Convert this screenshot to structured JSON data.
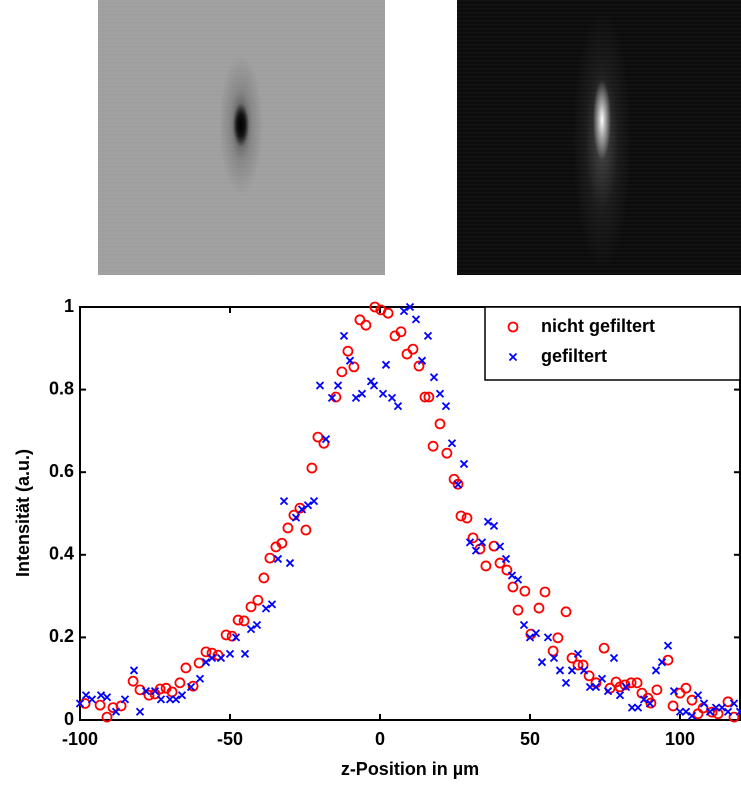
{
  "chart_data": {
    "type": "scatter",
    "xlabel": "z-Position in µm",
    "ylabel": "Intensität (a.u.)",
    "xlim": [
      -100,
      120
    ],
    "ylim": [
      0,
      1
    ],
    "xticks": [
      -100,
      -50,
      0,
      50,
      100
    ],
    "yticks": [
      0,
      0.2,
      0.4,
      0.6,
      0.8,
      1
    ],
    "legend": "upper right",
    "series": [
      {
        "name": "nicht gefiltert",
        "color": "#ff0000",
        "marker": "circle",
        "x": [
          -98.3,
          -93.3,
          -91,
          -89,
          -86.3,
          -82.3,
          -80,
          -77,
          -75,
          -73.3,
          -71.3,
          -69.3,
          -66.7,
          -64.7,
          -62.3,
          -60.3,
          -58,
          -56,
          -54,
          -51.3,
          -49.3,
          -47.3,
          -45.3,
          -43,
          -40.7,
          -38.7,
          -36.7,
          -34.7,
          -32.7,
          -30.7,
          -28.7,
          -26.7,
          -24.7,
          -22.7,
          -20.7,
          -18.7,
          -14.7,
          -12.7,
          -10.7,
          -8.7,
          -6.7,
          -4.7,
          -1.7,
          0.3,
          2.7,
          5,
          7,
          9,
          11,
          13,
          15,
          16.3,
          17.7,
          20,
          22.3,
          24.7,
          26,
          27,
          29,
          31,
          33.3,
          35.3,
          38,
          40,
          42.3,
          44.3,
          46,
          48.3,
          50.3,
          53,
          55,
          57.7,
          59.3,
          62,
          64,
          66,
          67.7,
          69.7,
          72,
          74.7,
          76.7,
          78.7,
          80,
          81.7,
          83.7,
          85.7,
          87.3,
          89.3,
          90.3,
          92.3,
          96,
          97.7,
          100,
          102,
          104,
          106,
          107.7,
          110.7,
          112.7,
          116,
          118
        ],
        "values": [
          0.04,
          0.036,
          0.007,
          0.03,
          0.034,
          0.094,
          0.073,
          0.06,
          0.063,
          0.075,
          0.077,
          0.068,
          0.09,
          0.126,
          0.082,
          0.138,
          0.165,
          0.162,
          0.157,
          0.206,
          0.203,
          0.242,
          0.24,
          0.274,
          0.29,
          0.344,
          0.392,
          0.419,
          0.428,
          0.465,
          0.496,
          0.513,
          0.46,
          0.61,
          0.685,
          0.67,
          0.782,
          0.843,
          0.893,
          0.855,
          0.969,
          0.956,
          1.0,
          0.993,
          0.985,
          0.93,
          0.94,
          0.886,
          0.898,
          0.857,
          0.782,
          0.782,
          0.663,
          0.717,
          0.646,
          0.583,
          0.571,
          0.494,
          0.489,
          0.441,
          0.414,
          0.373,
          0.421,
          0.38,
          0.363,
          0.322,
          0.266,
          0.312,
          0.208,
          0.271,
          0.31,
          0.167,
          0.199,
          0.262,
          0.15,
          0.133,
          0.133,
          0.107,
          0.09,
          0.174,
          0.077,
          0.092,
          0.08,
          0.085,
          0.09,
          0.09,
          0.065,
          0.053,
          0.041,
          0.073,
          0.145,
          0.034,
          0.065,
          0.077,
          0.048,
          0.015,
          0.029,
          0.019,
          0.015,
          0.044,
          0.007
        ]
      },
      {
        "name": "gefiltert",
        "color": "#0000ff",
        "marker": "x",
        "x": [
          -100,
          -98,
          -96,
          -93,
          -91,
          -88,
          -85,
          -82,
          -80,
          -78,
          -75,
          -73,
          -70,
          -68,
          -66,
          -63,
          -60,
          -58,
          -56,
          -53,
          -50,
          -48,
          -45,
          -43,
          -41,
          -38,
          -36,
          -34,
          -32,
          -30,
          -28,
          -26,
          -24,
          -22,
          -20,
          -18,
          -16,
          -14,
          -12,
          -10,
          -8,
          -6,
          -3,
          -2,
          1,
          2,
          4,
          6,
          8,
          10,
          12,
          14,
          16,
          18,
          20,
          22,
          24,
          26,
          28,
          30,
          32,
          34,
          36,
          38,
          40,
          42,
          44,
          46,
          48,
          50,
          52,
          54,
          56,
          58,
          60,
          62,
          64,
          66,
          68,
          70,
          72,
          74,
          76,
          78,
          80,
          82,
          84,
          86,
          88,
          90,
          92,
          94,
          96,
          98,
          100,
          102,
          104,
          106,
          108,
          110,
          112,
          114,
          116,
          118,
          120
        ],
        "values": [
          0.04,
          0.06,
          0.05,
          0.06,
          0.055,
          0.02,
          0.05,
          0.12,
          0.02,
          0.07,
          0.07,
          0.05,
          0.05,
          0.05,
          0.06,
          0.08,
          0.1,
          0.14,
          0.15,
          0.15,
          0.16,
          0.2,
          0.16,
          0.22,
          0.23,
          0.27,
          0.28,
          0.39,
          0.53,
          0.38,
          0.49,
          0.51,
          0.52,
          0.53,
          0.81,
          0.68,
          0.78,
          0.81,
          0.93,
          0.87,
          0.78,
          0.79,
          0.82,
          0.81,
          0.79,
          0.86,
          0.78,
          0.76,
          0.99,
          1.0,
          0.97,
          0.87,
          0.93,
          0.83,
          0.79,
          0.76,
          0.67,
          0.57,
          0.62,
          0.43,
          0.41,
          0.43,
          0.48,
          0.47,
          0.42,
          0.39,
          0.35,
          0.34,
          0.23,
          0.2,
          0.21,
          0.14,
          0.2,
          0.15,
          0.12,
          0.09,
          0.12,
          0.16,
          0.12,
          0.08,
          0.08,
          0.1,
          0.07,
          0.15,
          0.06,
          0.08,
          0.03,
          0.03,
          0.05,
          0.04,
          0.12,
          0.14,
          0.18,
          0.07,
          0.02,
          0.02,
          0.01,
          0.06,
          0.04,
          0.02,
          0.03,
          0.03,
          0.02,
          0.04,
          0.02
        ]
      }
    ]
  }
}
